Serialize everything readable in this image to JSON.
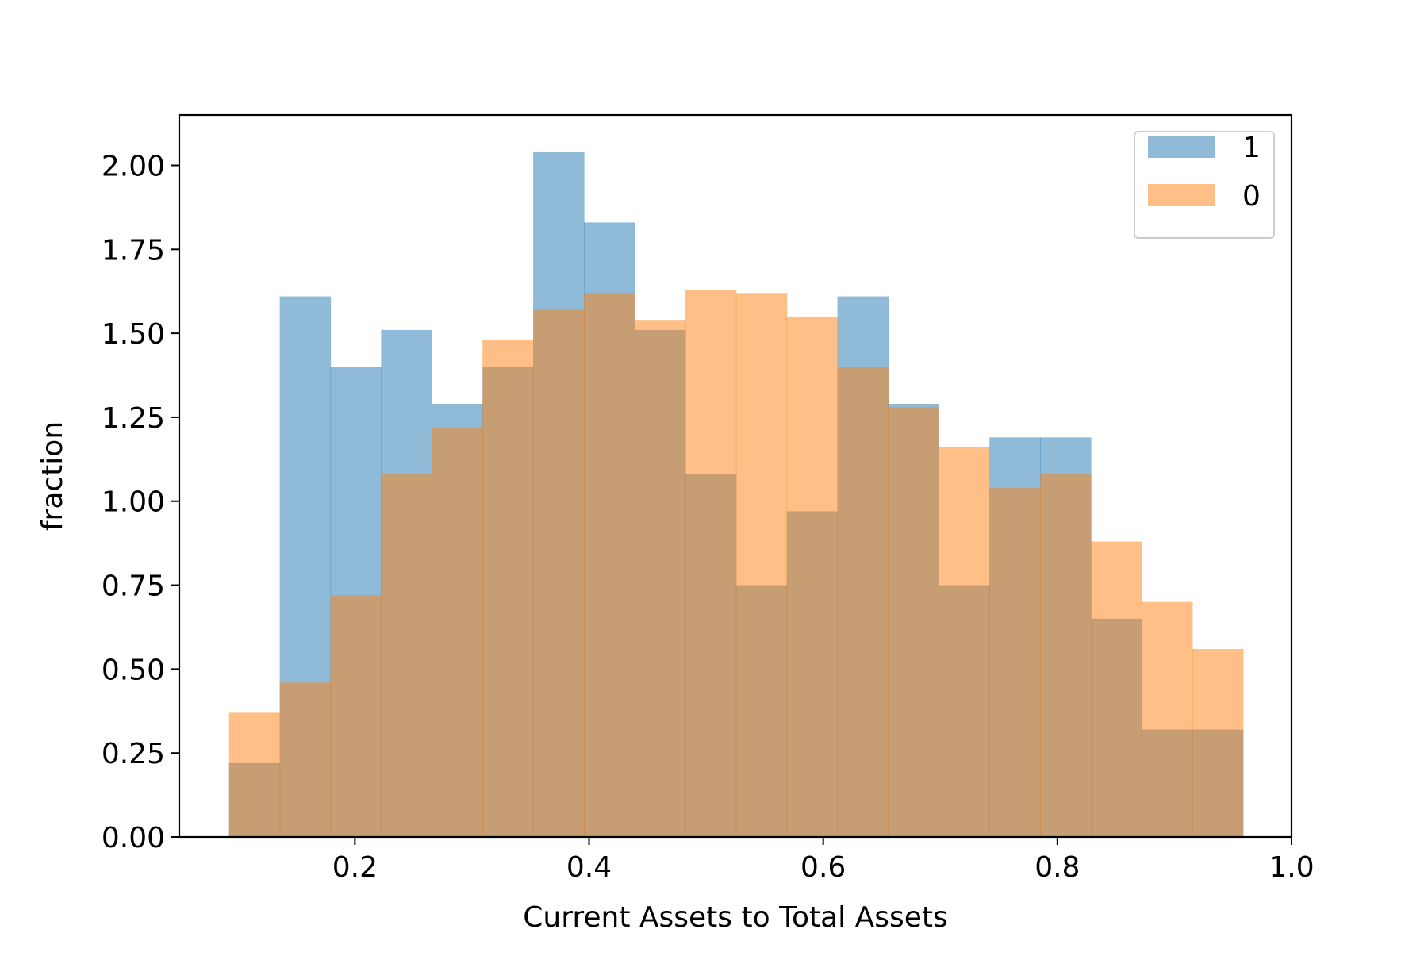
{
  "chart_data": {
    "type": "bar",
    "subtype": "overlaid-histogram",
    "title": "",
    "xlabel": "Current Assets to Total Assets",
    "ylabel": "fraction",
    "xlim": [
      0.05,
      1.0
    ],
    "ylim": [
      0.0,
      2.15
    ],
    "grid": false,
    "legend_position": "top-right",
    "xticks": [
      "0.2",
      "0.4",
      "0.6",
      "0.8",
      "1.0"
    ],
    "yticks": [
      "0.00",
      "0.25",
      "0.50",
      "0.75",
      "1.00",
      "1.25",
      "1.50",
      "1.75",
      "2.00"
    ],
    "bin_edges": [
      0.0925,
      0.1358,
      0.1791,
      0.2224,
      0.2657,
      0.309,
      0.3523,
      0.3956,
      0.4389,
      0.4822,
      0.5255,
      0.5688,
      0.6121,
      0.6554,
      0.6987,
      0.742,
      0.7853,
      0.8286,
      0.8719,
      0.9152,
      0.9585
    ],
    "series": [
      {
        "name": "1",
        "color": "#1f77b4",
        "values": [
          0.22,
          1.61,
          1.4,
          1.51,
          1.29,
          1.4,
          2.04,
          1.83,
          1.51,
          1.08,
          0.75,
          0.97,
          1.61,
          1.29,
          0.75,
          1.19,
          1.19,
          0.65,
          0.32,
          0.32
        ]
      },
      {
        "name": "0",
        "color": "#ff7f0e",
        "values": [
          0.37,
          0.46,
          0.72,
          1.08,
          1.22,
          1.48,
          1.57,
          1.62,
          1.54,
          1.63,
          1.62,
          1.55,
          1.4,
          1.28,
          1.16,
          1.04,
          1.08,
          0.88,
          0.7,
          0.56
        ]
      }
    ]
  }
}
